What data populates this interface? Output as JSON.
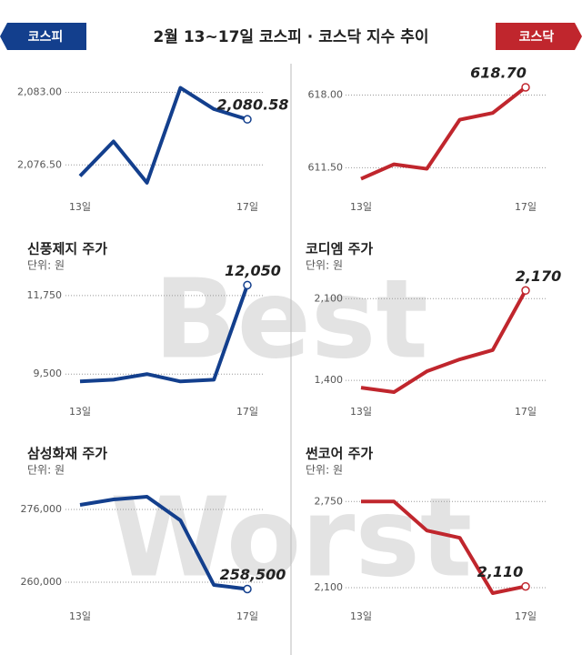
{
  "header": {
    "title": "2월 13~17일  코스피 · 코스닥 지수 추이",
    "left_badge": "코스피",
    "right_badge": "코스닥"
  },
  "watermark": [
    "Best",
    "Worst"
  ],
  "chart_data": [
    {
      "type": "line",
      "categories": [
        "13일",
        null,
        null,
        null,
        null,
        "17일"
      ],
      "color": "#133f8d",
      "values": [
        2075.5,
        2078.6,
        2074.9,
        2083.4,
        2081.5,
        2080.58
      ],
      "value_labels": [
        null,
        null,
        null,
        null,
        null,
        "2,080.58"
      ],
      "ylim": [
        2073.75,
        2084.75
      ],
      "yticks": [
        {
          "value": 2076.5,
          "label": "2,076.50"
        },
        {
          "value": 2083,
          "label": "2,083.00"
        }
      ],
      "grid": true
    },
    {
      "type": "line",
      "categories": [
        "13일",
        null,
        null,
        null,
        null,
        "17일"
      ],
      "color": "#c0262d",
      "values": [
        610.5,
        611.8,
        611.4,
        615.8,
        616.4,
        618.7
      ],
      "value_labels": [
        null,
        null,
        null,
        null,
        null,
        "618.70"
      ],
      "ylim": [
        609,
        620
      ],
      "yticks": [
        {
          "value": 611.5,
          "label": "611.50"
        },
        {
          "value": 618,
          "label": "618.00"
        }
      ],
      "grid": true
    },
    {
      "type": "line",
      "title": "신풍제지 주가",
      "subtitle": "단위: 원",
      "categories": [
        "13일",
        null,
        null,
        null,
        null,
        "17일"
      ],
      "color": "#133f8d",
      "values": [
        9290,
        9340,
        9500,
        9290,
        9340,
        12050
      ],
      "value_labels": [
        null,
        null,
        null,
        null,
        null,
        "12,050"
      ],
      "ylim": [
        8750,
        12400
      ],
      "yticks": [
        {
          "value": 9500,
          "label": "9,500"
        },
        {
          "value": 11750,
          "label": "11,750"
        }
      ],
      "grid": true
    },
    {
      "type": "line",
      "title": "코디엠 주가",
      "subtitle": "단위: 원",
      "categories": [
        "13일",
        null,
        null,
        null,
        null,
        "17일"
      ],
      "color": "#c0262d",
      "values": [
        1338,
        1300,
        1478,
        1580,
        1660,
        2170
      ],
      "value_labels": [
        null,
        null,
        null,
        null,
        null,
        "2,170"
      ],
      "ylim": [
        1230,
        2320
      ],
      "yticks": [
        {
          "value": 1400,
          "label": "1,400"
        },
        {
          "value": 2100,
          "label": "2,100"
        }
      ],
      "grid": true
    },
    {
      "type": "line",
      "title": "삼성화재 주가",
      "subtitle": "단위: 원",
      "categories": [
        "13일",
        null,
        null,
        null,
        null,
        "17일"
      ],
      "color": "#133f8d",
      "values": [
        277000,
        278200,
        278800,
        273600,
        259400,
        258500
      ],
      "value_labels": [
        null,
        null,
        null,
        null,
        null,
        "258,500"
      ],
      "ylim": [
        255000,
        283000
      ],
      "yticks": [
        {
          "value": 260000,
          "label": "260,000"
        },
        {
          "value": 276000,
          "label": "276,000"
        }
      ],
      "grid": true
    },
    {
      "type": "line",
      "title": "썬코어 주가",
      "subtitle": "단위: 원",
      "categories": [
        "13일",
        null,
        null,
        null,
        null,
        "17일"
      ],
      "color": "#c0262d",
      "values": [
        2750,
        2750,
        2531,
        2476,
        2059,
        2110
      ],
      "value_labels": [
        null,
        null,
        null,
        null,
        null,
        "2,110"
      ],
      "ylim": [
        1970,
        2930
      ],
      "yticks": [
        {
          "value": 2100,
          "label": "2,100"
        },
        {
          "value": 2750,
          "label": "2,750"
        }
      ],
      "grid": true
    }
  ]
}
